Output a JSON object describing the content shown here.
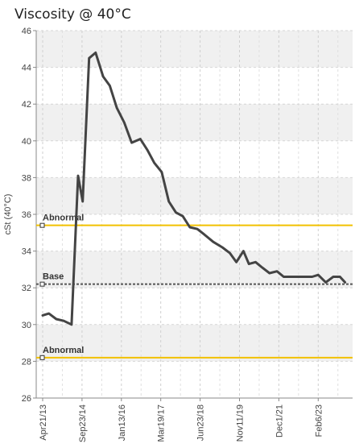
{
  "chart_data": {
    "type": "line",
    "title": "Viscosity @ 40°C",
    "ylabel": "cSt (40°C)",
    "xlabel": "",
    "ylim": [
      26,
      46
    ],
    "yticks": [
      26,
      28,
      30,
      32,
      34,
      36,
      38,
      40,
      42,
      44,
      46
    ],
    "x_tick_labels": [
      "Apr21/13",
      "Sep23/14",
      "Jan13/16",
      "Mar19/17",
      "Jun23/18",
      "Nov11/19",
      "Dec1/21",
      "Feb6/23"
    ],
    "grid": true,
    "series": [
      {
        "color": "#444444",
        "x": [
          "2013-04-21",
          "2013-07-10",
          "2013-10-15",
          "2014-01-20",
          "2014-05-01",
          "2014-07-25",
          "2014-09-23",
          "2014-12-15",
          "2015-03-10",
          "2015-06-15",
          "2015-09-10",
          "2015-12-10",
          "2016-03-15",
          "2016-06-20",
          "2016-10-10",
          "2017-01-10",
          "2017-04-10",
          "2017-07-15",
          "2017-10-15",
          "2018-01-15",
          "2018-04-15",
          "2018-07-15",
          "2018-10-20",
          "2019-01-20",
          "2019-05-15",
          "2019-09-10",
          "2019-12-15",
          "2020-03-10",
          "2020-06-10",
          "2020-08-20",
          "2020-11-15",
          "2021-02-10",
          "2021-05-15",
          "2021-08-20",
          "2021-11-15",
          "2022-02-15",
          "2022-05-20",
          "2022-08-20",
          "2022-11-20",
          "2023-02-06",
          "2023-05-15",
          "2023-08-20",
          "2023-11-15",
          "2024-01-20"
        ],
        "values": [
          30.5,
          30.6,
          30.3,
          30.2,
          30.0,
          38.1,
          36.7,
          44.5,
          44.8,
          43.5,
          43.0,
          41.8,
          41.0,
          39.9,
          40.1,
          39.5,
          38.8,
          38.3,
          36.7,
          36.1,
          35.9,
          35.3,
          35.2,
          34.9,
          34.5,
          34.2,
          33.9,
          33.4,
          34.0,
          33.3,
          33.4,
          33.1,
          32.8,
          32.9,
          32.6,
          32.6,
          32.6,
          32.6,
          32.6,
          32.7,
          32.3,
          32.6,
          32.6,
          32.3
        ]
      }
    ],
    "reference_lines": [
      {
        "label": "Abnormal",
        "value": 35.4,
        "color": "#f2c100",
        "style": "solid"
      },
      {
        "label": "Base",
        "value": 32.2,
        "color": "#555555",
        "style": "dashed"
      },
      {
        "label": "Abnormal",
        "value": 28.2,
        "color": "#f2c100",
        "style": "solid"
      }
    ]
  }
}
